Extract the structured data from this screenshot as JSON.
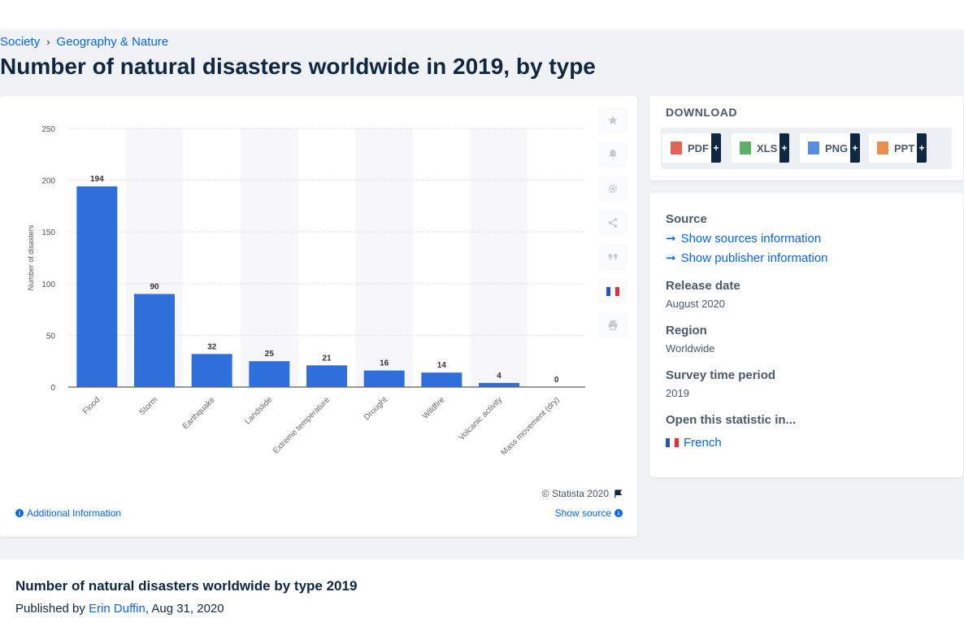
{
  "breadcrumb": {
    "item1": "Society",
    "item2": "Geography & Nature"
  },
  "page_title": "Number of natural disasters worldwide in 2019, by type",
  "chart_data": {
    "type": "bar",
    "categories": [
      "Flood",
      "Storm",
      "Earthquake",
      "Landslide",
      "Extreme temperature",
      "Drought",
      "Wildfire",
      "Volcanic activity",
      "Mass movement (dry)"
    ],
    "values": [
      194,
      90,
      32,
      25,
      21,
      16,
      14,
      4,
      0
    ],
    "ylabel": "Number of disasters",
    "ylim": [
      0,
      250
    ],
    "yticks": [
      0,
      50,
      100,
      150,
      200,
      250
    ],
    "bar_color": "#2e6fdc",
    "grid": true
  },
  "chart_footer": {
    "copyright": "© Statista 2020",
    "additional_info": "Additional Information",
    "show_source": "Show source"
  },
  "tools": [
    "star-icon",
    "bell-icon",
    "gear-icon",
    "share-icon",
    "quote-icon",
    "flag-icon",
    "print-icon"
  ],
  "download": {
    "title": "DOWNLOAD",
    "buttons": [
      {
        "label": "PDF",
        "color": "#e0463a"
      },
      {
        "label": "XLS",
        "color": "#3fa34d"
      },
      {
        "label": "PNG",
        "color": "#3a7bd5"
      },
      {
        "label": "PPT",
        "color": "#e8792d"
      }
    ],
    "plus": "+"
  },
  "info": {
    "source_label": "Source",
    "show_sources": "Show sources information",
    "show_publisher": "Show publisher information",
    "release_label": "Release date",
    "release_value": "August 2020",
    "region_label": "Region",
    "region_value": "Worldwide",
    "period_label": "Survey time period",
    "period_value": "2019",
    "open_label": "Open this statistic in...",
    "open_french": "French"
  },
  "publication": {
    "title": "Number of natural disasters worldwide by type 2019",
    "published_by": "Published by",
    "author": "Erin Duffin",
    "date": ", Aug 31, 2020"
  }
}
